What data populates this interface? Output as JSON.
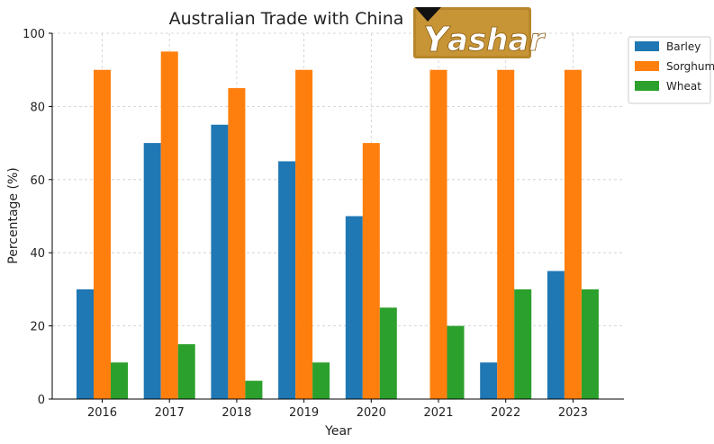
{
  "logo": {
    "text": "ashar",
    "initial": "Y"
  },
  "chart_data": {
    "type": "bar",
    "title": "Australian Trade with China",
    "xlabel": "Year",
    "ylabel": "Percentage (%)",
    "categories": [
      "2016",
      "2017",
      "2018",
      "2019",
      "2020",
      "2021",
      "2022",
      "2023"
    ],
    "series": [
      {
        "name": "Barley",
        "color": "#1f77b4",
        "values": [
          30,
          70,
          75,
          65,
          50,
          0,
          10,
          35
        ]
      },
      {
        "name": "Sorghum",
        "color": "#ff7f0e",
        "values": [
          90,
          95,
          85,
          90,
          70,
          90,
          90,
          90
        ]
      },
      {
        "name": "Wheat",
        "color": "#2ca02c",
        "values": [
          10,
          15,
          5,
          10,
          25,
          20,
          30,
          30
        ]
      }
    ],
    "ylim": [
      0,
      100
    ],
    "yticks": [
      0,
      20,
      40,
      60,
      80,
      100
    ],
    "grid": true,
    "legend_position": "top-right"
  }
}
